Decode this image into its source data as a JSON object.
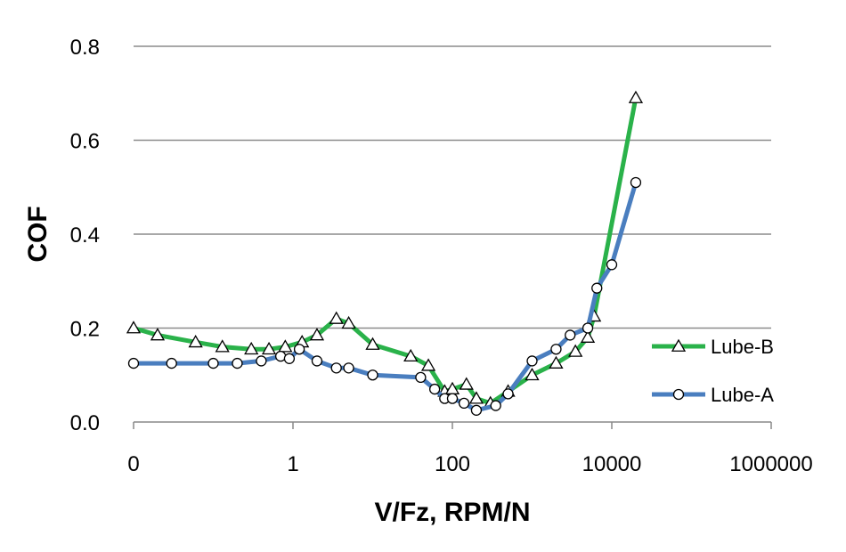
{
  "chart_data": {
    "type": "line",
    "title": "",
    "xlabel": "V/Fz, RPM/N",
    "ylabel": "COF",
    "x_scale": "log",
    "xlim": [
      0.01,
      1000000
    ],
    "ylim": [
      0,
      0.8
    ],
    "x_tick_values": [
      0.01,
      1,
      100,
      10000,
      1000000
    ],
    "x_tick_labels": [
      "0",
      "1",
      "100",
      "10000",
      "1000000"
    ],
    "y_tick_values": [
      0,
      0.2,
      0.4,
      0.6,
      0.8
    ],
    "y_tick_labels": [
      "0.0",
      "0.2",
      "0.4",
      "0.6",
      "0.8"
    ],
    "grid": "horizontal",
    "legend_position": "right",
    "series": [
      {
        "name": "Lube-B",
        "color": "#2ab24a",
        "marker": "triangle",
        "x": [
          0.01,
          0.02,
          0.06,
          0.13,
          0.3,
          0.5,
          0.8,
          1.3,
          2,
          3.5,
          5,
          10,
          30,
          50,
          80,
          100,
          150,
          200,
          300,
          500,
          1000,
          2000,
          3500,
          5000,
          6000,
          20000
        ],
        "y": [
          0.2,
          0.185,
          0.17,
          0.16,
          0.155,
          0.155,
          0.16,
          0.17,
          0.185,
          0.22,
          0.21,
          0.165,
          0.14,
          0.12,
          0.065,
          0.07,
          0.08,
          0.05,
          0.04,
          0.065,
          0.1,
          0.125,
          0.15,
          0.18,
          0.225,
          0.69
        ]
      },
      {
        "name": "Lube-A",
        "color": "#4a7ebf",
        "marker": "circle",
        "x": [
          0.01,
          0.03,
          0.1,
          0.2,
          0.4,
          0.7,
          0.9,
          1.2,
          2,
          3.5,
          5,
          10,
          40,
          60,
          80,
          100,
          140,
          200,
          350,
          500,
          1000,
          2000,
          3000,
          5000,
          6500,
          10000,
          20000
        ],
        "y": [
          0.125,
          0.125,
          0.125,
          0.125,
          0.13,
          0.14,
          0.135,
          0.155,
          0.13,
          0.115,
          0.115,
          0.1,
          0.095,
          0.07,
          0.05,
          0.05,
          0.04,
          0.025,
          0.035,
          0.06,
          0.13,
          0.155,
          0.185,
          0.2,
          0.285,
          0.335,
          0.51
        ]
      }
    ]
  }
}
